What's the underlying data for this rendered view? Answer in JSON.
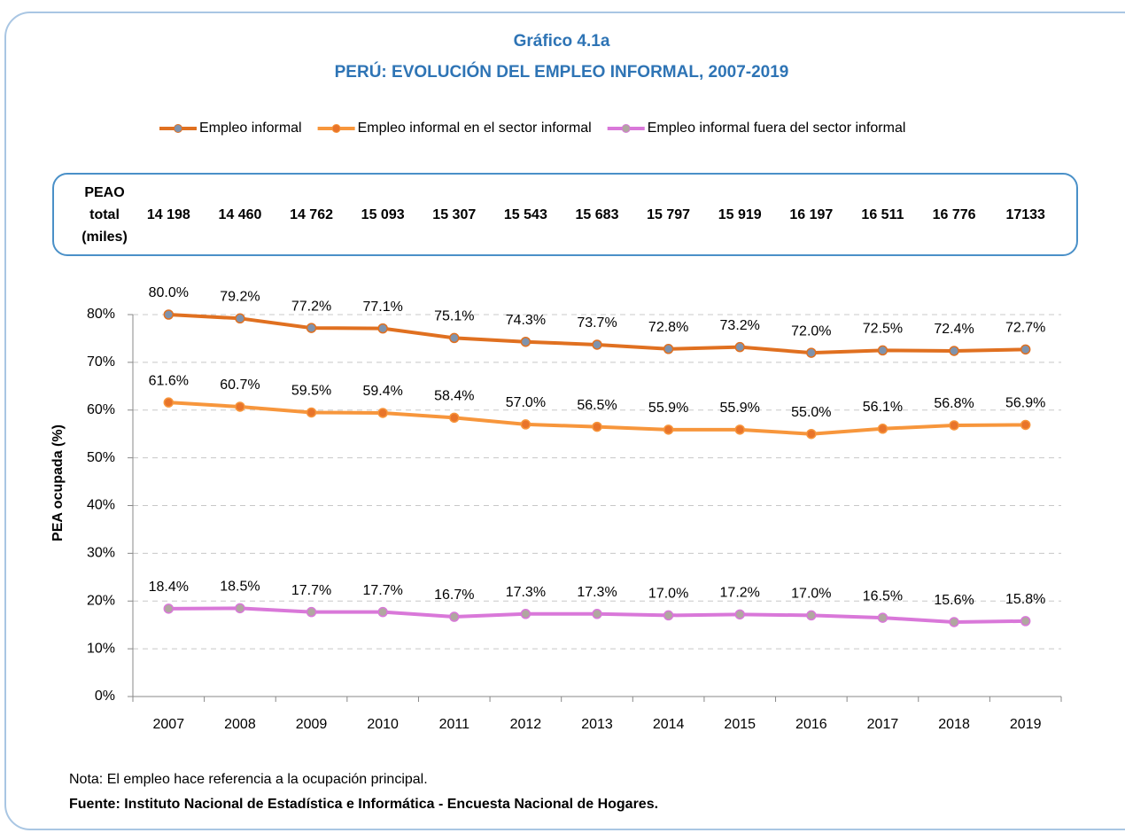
{
  "chart_data": {
    "type": "line",
    "title": "Gráfico 4.1a",
    "subtitle": "PERÚ: EVOLUCIÓN DEL EMPLEO INFORMAL, 2007-2019",
    "y_label": "PEA ocupada (%)",
    "categories": [
      "2007",
      "2008",
      "2009",
      "2010",
      "2011",
      "2012",
      "2013",
      "2014",
      "2015",
      "2016",
      "2017",
      "2018",
      "2019"
    ],
    "series": [
      {
        "name": "Empleo informal",
        "color": "#e07020",
        "marker_color": "#7f93ad",
        "values": [
          80.0,
          79.2,
          77.2,
          77.1,
          75.1,
          74.3,
          73.7,
          72.8,
          73.2,
          72.0,
          72.5,
          72.4,
          72.7
        ],
        "value_labels": [
          "80.0%",
          "79.2%",
          "77.2%",
          "77.1%",
          "75.1%",
          "74.3%",
          "73.7%",
          "72.8%",
          "73.2%",
          "72.0%",
          "72.5%",
          "72.4%",
          "72.7%"
        ]
      },
      {
        "name": "Empleo informal en el sector informal",
        "color": "#f7963c",
        "marker_color": "#e8742a",
        "values": [
          61.6,
          60.7,
          59.5,
          59.4,
          58.4,
          57.0,
          56.5,
          55.9,
          55.9,
          55.0,
          56.1,
          56.8,
          56.9
        ],
        "value_labels": [
          "61.6%",
          "60.7%",
          "59.5%",
          "59.4%",
          "58.4%",
          "57.0%",
          "56.5%",
          "55.9%",
          "55.9%",
          "55.0%",
          "56.1%",
          "56.8%",
          "56.9%"
        ]
      },
      {
        "name": "Empleo informal fuera del sector informal",
        "color": "#d978d9",
        "marker_color": "#b0a7a0",
        "values": [
          18.4,
          18.5,
          17.7,
          17.7,
          16.7,
          17.3,
          17.3,
          17.0,
          17.2,
          17.0,
          16.5,
          15.6,
          15.8
        ],
        "value_labels": [
          "18.4%",
          "18.5%",
          "17.7%",
          "17.7%",
          "16.7%",
          "17.3%",
          "17.3%",
          "17.0%",
          "17.2%",
          "17.0%",
          "16.5%",
          "15.6%",
          "15.8%"
        ]
      }
    ],
    "ylim": [
      0,
      80
    ],
    "yticks": [
      {
        "value": 0,
        "label": "0%"
      },
      {
        "value": 10,
        "label": "10%"
      },
      {
        "value": 20,
        "label": "20%"
      },
      {
        "value": 30,
        "label": "30%"
      },
      {
        "value": 40,
        "label": "40%"
      },
      {
        "value": 50,
        "label": "50%"
      },
      {
        "value": 60,
        "label": "60%"
      },
      {
        "value": 70,
        "label": "70%"
      },
      {
        "value": 80,
        "label": "80%"
      }
    ],
    "grid": true,
    "legend": "top",
    "peao": {
      "label": [
        "PEAO",
        "total",
        "(miles)"
      ],
      "values": [
        "14 198",
        "14 460",
        "14 762",
        "15 093",
        "15 307",
        "15 543",
        "15 683",
        "15 797",
        "15 919",
        "16 197",
        "16 511",
        "16 776",
        "17133"
      ]
    },
    "note": "Nota: El empleo hace referencia a la ocupación principal.",
    "source": "Fuente: Instituto Nacional de Estadística e Informática - Encuesta Nacional de Hogares."
  }
}
